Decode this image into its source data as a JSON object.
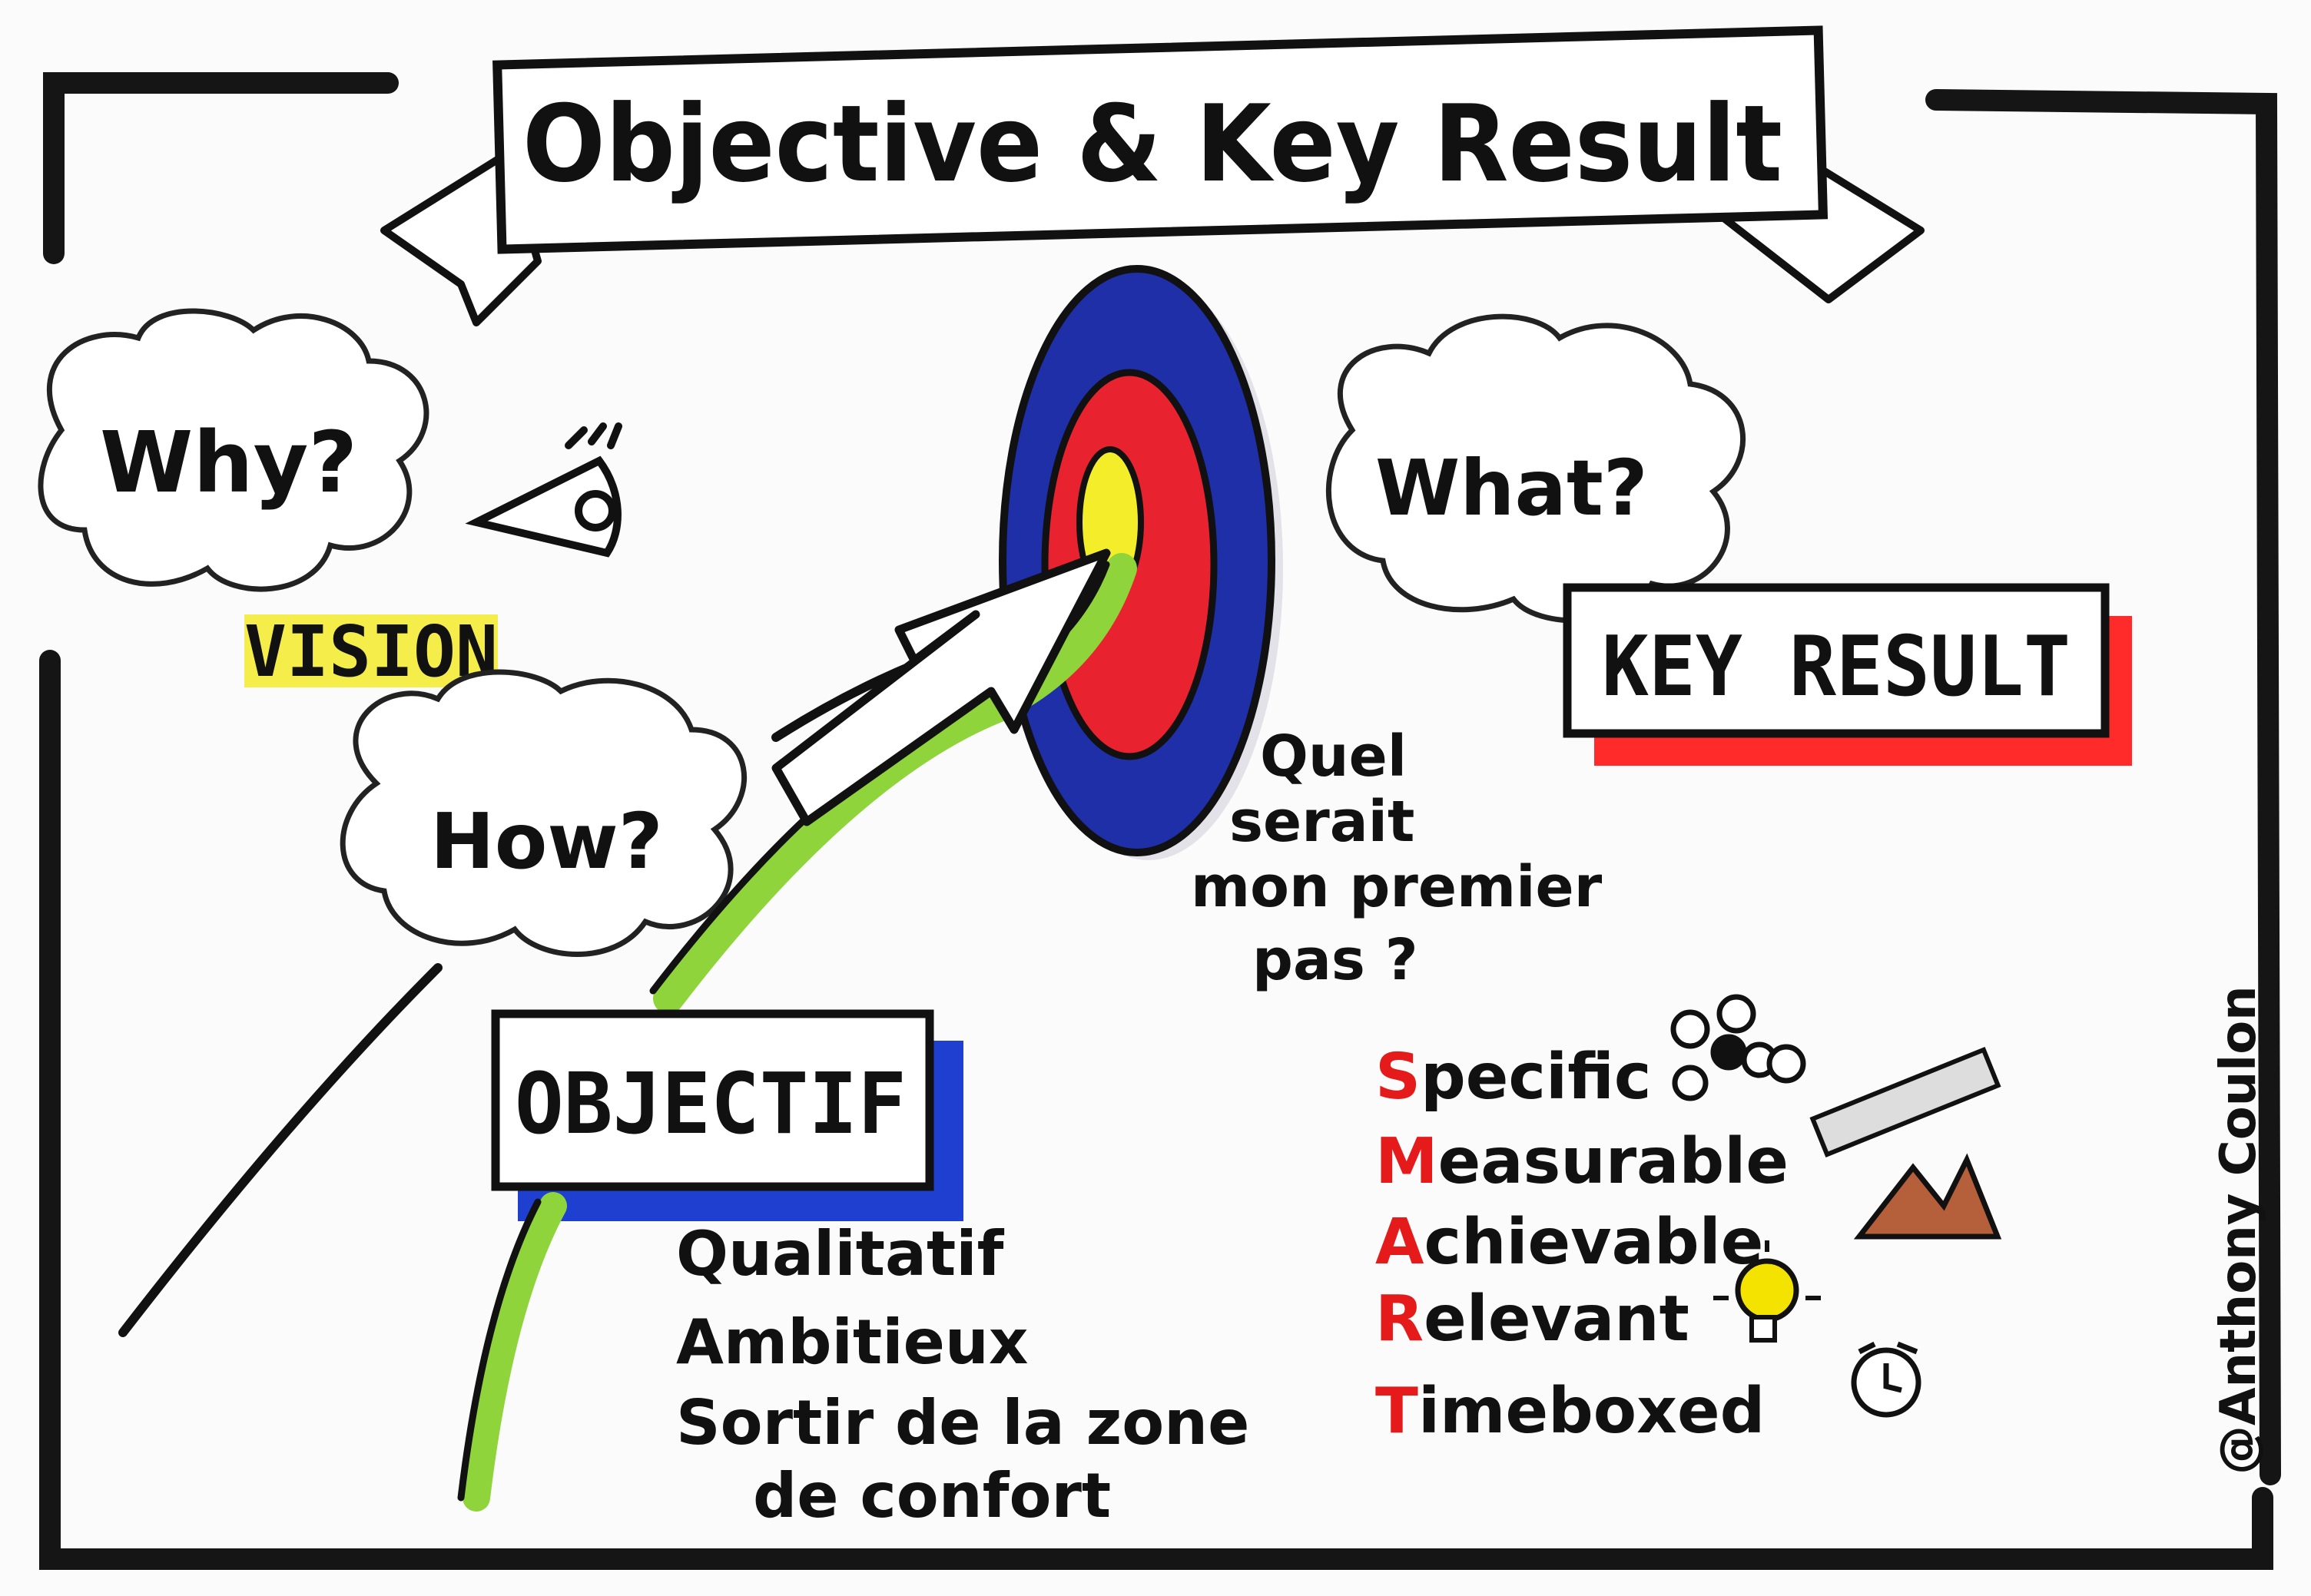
{
  "banner": {
    "title": "Objective & Key Result"
  },
  "clouds": {
    "why": "Why?",
    "how": "How?",
    "what": "What?"
  },
  "labels": {
    "vision": "VISION",
    "key_result": "KEY RESULT",
    "objectif": "OBJECTIF"
  },
  "question": [
    "Quel",
    "serait",
    "mon premier",
    "pas ?"
  ],
  "objectif_traits": [
    "Qualitatif",
    "Ambitieux",
    "Sortir de la zone",
    "de confort"
  ],
  "smart": [
    {
      "letter": "S",
      "rest": "pecific"
    },
    {
      "letter": "M",
      "rest": "easurable"
    },
    {
      "letter": "A",
      "rest": "chievable"
    },
    {
      "letter": "R",
      "rest": "elevant"
    },
    {
      "letter": "T",
      "rest": "imeboxed"
    }
  ],
  "signature": "@Anthony Coulon",
  "colors": {
    "target_outer": "#1f2fa8",
    "target_middle": "#e8222e",
    "target_center": "#f4ee2a",
    "path_green": "#8fd43a",
    "vision_highlight": "#f3ea2a",
    "key_result_shadow": "#ff2a2a",
    "objectif_shadow": "#1f3fd0",
    "smart_letter": "#e51b1b",
    "bulb_yellow": "#f4e300",
    "mountain_brown": "#b5603a"
  },
  "icons": [
    "eye-icon",
    "target-icon",
    "arrow-icon",
    "dots-icon",
    "ruler-icon",
    "mountain-icon",
    "lightbulb-icon",
    "alarm-clock-icon"
  ]
}
